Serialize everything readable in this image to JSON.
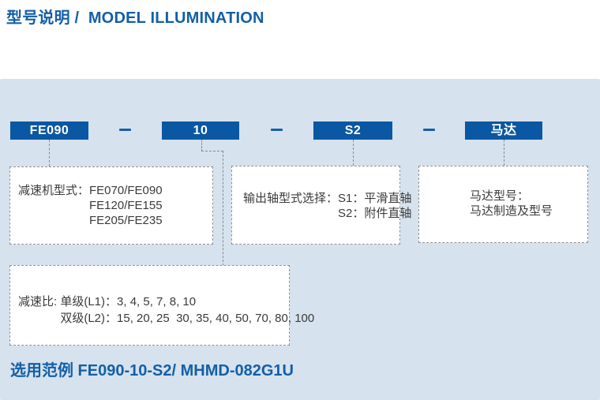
{
  "page": {
    "title": "型号说明 /  MODEL ILLUMINATION",
    "example_label": "选用范例 FE090-10-S2/ MHMD-082G1U"
  },
  "model_code": {
    "segments": [
      {
        "label": "FE090"
      },
      {
        "label": "10"
      },
      {
        "label": "S2"
      },
      {
        "label": "马达"
      }
    ]
  },
  "callouts": {
    "gearbox": {
      "label": "减速机型式：",
      "values": [
        "FE070/FE090",
        "FE120/FE155",
        "FE205/FE235"
      ]
    },
    "output_shaft": {
      "label": "输出轴型式选择：",
      "values": [
        "S1：平滑直轴",
        "S2：附件直轴"
      ]
    },
    "motor": {
      "lines": [
        "马达型号：",
        "马达制造及型号"
      ]
    },
    "ratio": {
      "label": "减速比: ",
      "values": [
        "单级(L1)：3, 4, 5, 7, 8, 10",
        "双级(L2)：15, 20, 25  30, 35, 40, 50, 70, 80, 100"
      ]
    }
  },
  "colors": {
    "accent_blue": "#135fa7",
    "segment_box_blue": "#0a57a3",
    "panel_background": "#d6e2ee"
  }
}
